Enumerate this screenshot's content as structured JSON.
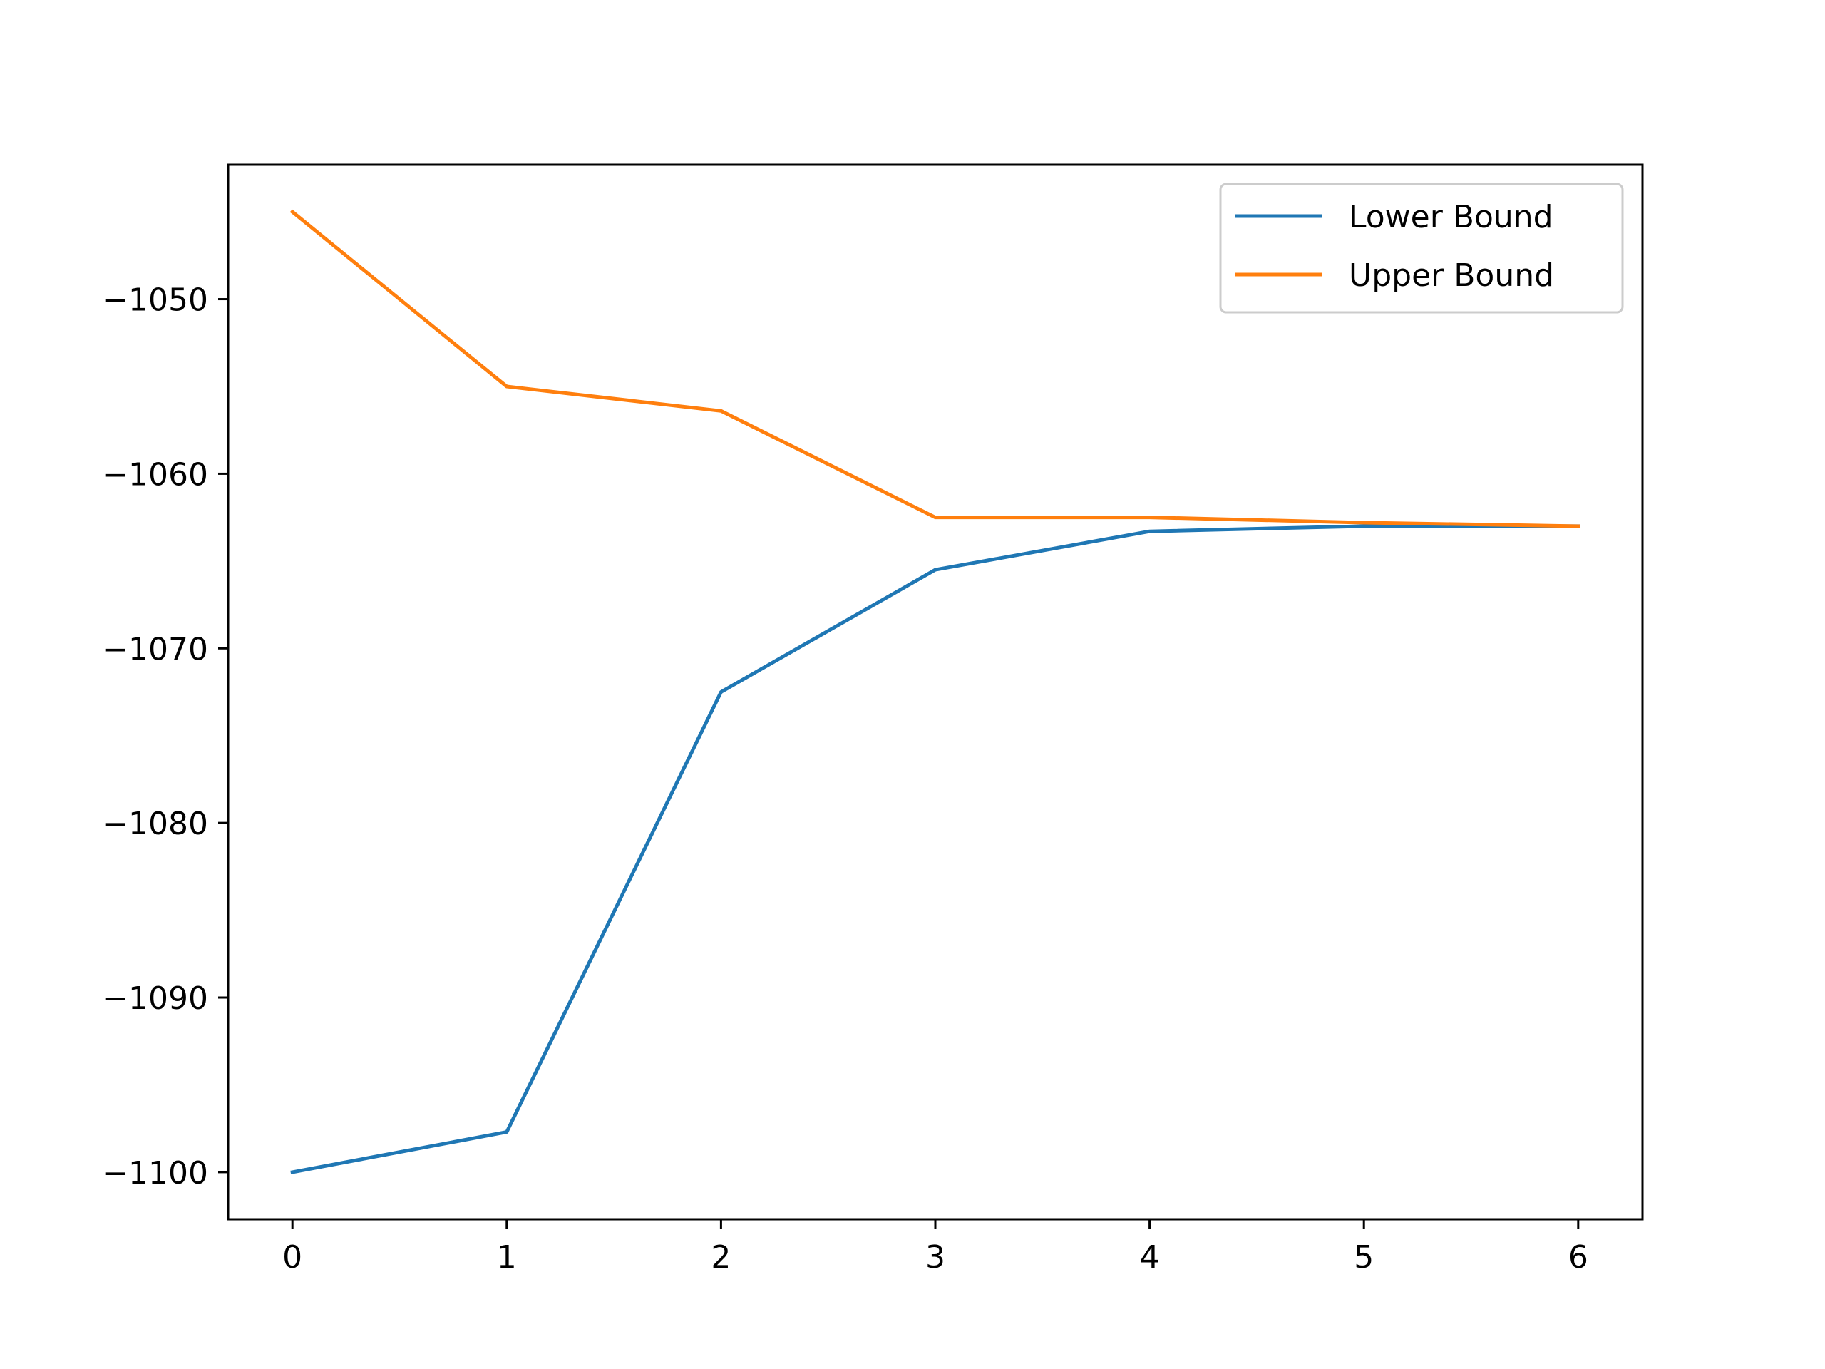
{
  "chart_data": {
    "type": "line",
    "title": "",
    "xlabel": "",
    "ylabel": "",
    "x": [
      0,
      1,
      2,
      3,
      4,
      5,
      6
    ],
    "series": [
      {
        "name": "Lower Bound",
        "color": "#1f77b4",
        "values": [
          -1100.0,
          -1097.7,
          -1072.5,
          -1065.5,
          -1063.3,
          -1063.0,
          -1063.0
        ]
      },
      {
        "name": "Upper Bound",
        "color": "#ff7f0e",
        "values": [
          -1045.0,
          -1055.0,
          -1056.4,
          -1062.5,
          -1062.5,
          -1062.8,
          -1063.0
        ]
      }
    ],
    "xlim": [
      -0.3,
      6.3
    ],
    "ylim": [
      -1102.7,
      -1042.3
    ],
    "xticks": [
      0,
      1,
      2,
      3,
      4,
      5,
      6
    ],
    "xtick_labels": [
      "0",
      "1",
      "2",
      "3",
      "4",
      "5",
      "6"
    ],
    "yticks": [
      -1100,
      -1090,
      -1080,
      -1070,
      -1060,
      -1050
    ],
    "ytick_labels": [
      "−1100",
      "−1090",
      "−1080",
      "−1070",
      "−1060",
      "−1050"
    ],
    "grid": false,
    "legend_position": "upper right"
  }
}
